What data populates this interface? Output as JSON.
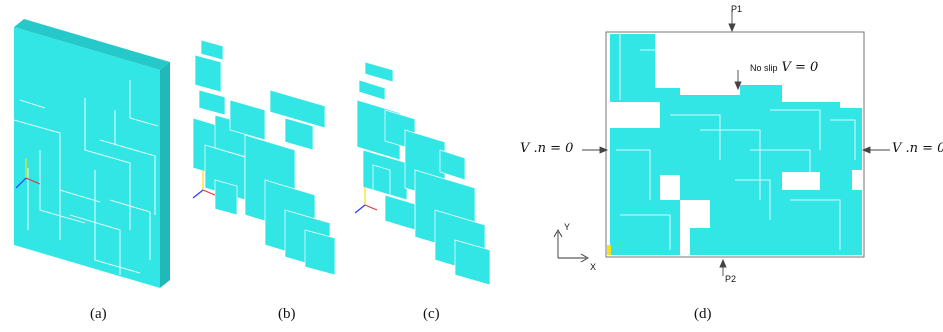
{
  "captions": {
    "a": "(a)",
    "b": "(b)",
    "c": "(c)",
    "d": "(d)"
  },
  "labels": {
    "p1": "P1",
    "p2": "P2",
    "no_slip": "No slip",
    "no_slip_eq": "V = 0",
    "left_bc": "V .n = 0",
    "right_bc": "V .n = 0",
    "axis_x": "X",
    "axis_y": "Y"
  },
  "colors": {
    "fill": "#33e6e6",
    "edge": "#1fa8a8",
    "line": "#ffffff",
    "frame": "#777777",
    "accent_yellow": "#f2e21a",
    "accent_blue": "#2a3cff",
    "accent_red": "#e03a3a"
  }
}
